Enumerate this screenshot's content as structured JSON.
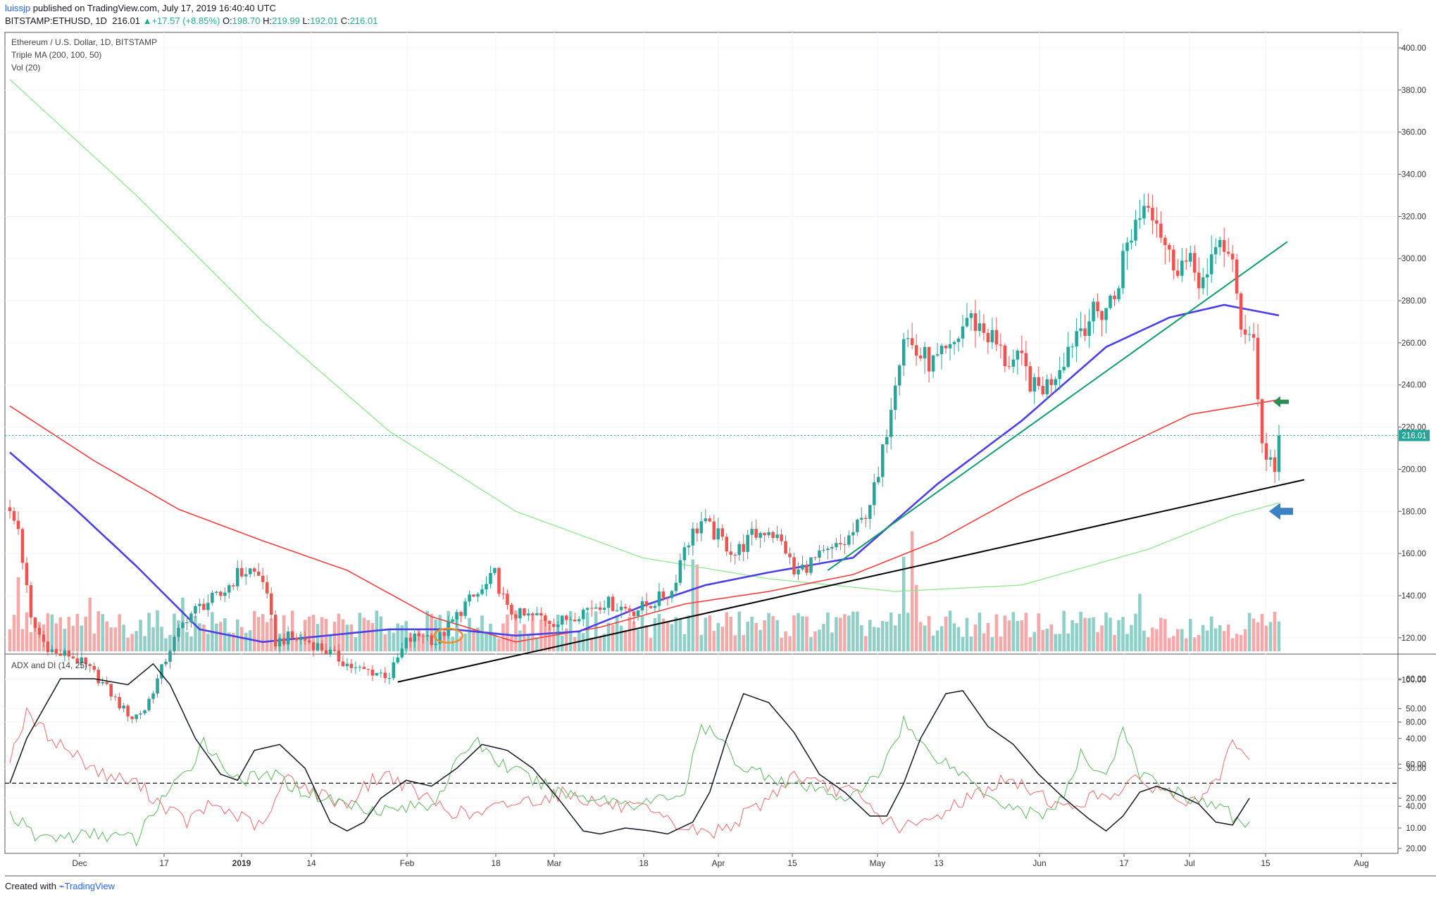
{
  "header": {
    "author": "luissjp",
    "published_text": "published on TradingView.com, July 17, 2019 16:40:40 UTC",
    "symbol": "BITSTAMP:ETHUSD, 1D",
    "last": "216.01",
    "change": "+17.57 (+8.85%)",
    "o_label": "O:",
    "o_value": "198.70",
    "h_label": "H:",
    "h_value": "219.99",
    "l_label": "L:",
    "l_value": "192.01",
    "c_label": "C:",
    "c_value": "216.01"
  },
  "legend": {
    "title": "Ethereum / U.S. Dollar, 1D, BITSTAMP",
    "ma": "Triple MA (200, 100, 50)",
    "vol": "Vol (20)",
    "adx": "ADX and DI (14, 25)"
  },
  "footer": {
    "created_with": "Created with",
    "brand": "TradingView"
  },
  "colors": {
    "bull": "#26a69a",
    "bear": "#ef5350",
    "vol_bull": "#8ecfc8",
    "vol_bear": "#f5a8a8",
    "ma50": "#4b3fe8",
    "ma100": "#f23f3f",
    "ma200": "#8fe88f",
    "trend_black": "#000000",
    "trend_green": "#0f9d6e",
    "adx": "#131722",
    "di_plus": "#5cb85c",
    "di_minus": "#ef6b6b",
    "arrow_blue": "#3b82c4",
    "arrow_green": "#2e8b57",
    "circle_orange": "#f28c28",
    "price_tag": "#26a69a"
  },
  "chart_data": {
    "type": "candlestick",
    "price_axis": {
      "min": 20,
      "max": 400,
      "ticks": [
        "20.00",
        "40.00",
        "60.00",
        "80.00",
        "100.00",
        "120.00",
        "140.00",
        "160.00",
        "180.00",
        "200.00",
        "220.00",
        "240.00",
        "260.00",
        "280.00",
        "300.00",
        "320.00",
        "340.00",
        "360.00",
        "380.00",
        "400.00"
      ],
      "last_price_label": "216.01",
      "last_price": 216.01
    },
    "adx_axis": {
      "min": 0,
      "max": 65,
      "ticks": [
        "10.00",
        "20.00",
        "30.00",
        "40.00",
        "50.00",
        "60.00"
      ],
      "threshold": 25
    },
    "time_axis": {
      "ticks": [
        "Dec",
        "17",
        "2019",
        "14",
        "Feb",
        "18",
        "Mar",
        "18",
        "Apr",
        "15",
        "May",
        "13",
        "Jun",
        "17",
        "Jul",
        "15",
        "Aug"
      ]
    },
    "price_anchors": [
      [
        0,
        178
      ],
      [
        2,
        172
      ],
      [
        5,
        128
      ],
      [
        8,
        118
      ],
      [
        11,
        112
      ],
      [
        14,
        112
      ],
      [
        17,
        108
      ],
      [
        20,
        103
      ],
      [
        23,
        96
      ],
      [
        26,
        88
      ],
      [
        29,
        82
      ],
      [
        32,
        86
      ],
      [
        35,
        100
      ],
      [
        38,
        115
      ],
      [
        42,
        130
      ],
      [
        46,
        136
      ],
      [
        50,
        140
      ],
      [
        54,
        150
      ],
      [
        57,
        152
      ],
      [
        60,
        148
      ],
      [
        63,
        118
      ],
      [
        66,
        120
      ],
      [
        70,
        119
      ],
      [
        74,
        115
      ],
      [
        78,
        110
      ],
      [
        82,
        105
      ],
      [
        86,
        104
      ],
      [
        90,
        102
      ],
      [
        94,
        118
      ],
      [
        98,
        122
      ],
      [
        101,
        118
      ],
      [
        104,
        125
      ],
      [
        108,
        136
      ],
      [
        112,
        142
      ],
      [
        115,
        150
      ],
      [
        118,
        133
      ],
      [
        122,
        130
      ],
      [
        126,
        130
      ],
      [
        130,
        127
      ],
      [
        134,
        131
      ],
      [
        137,
        134
      ],
      [
        141,
        137
      ],
      [
        144,
        135
      ],
      [
        148,
        133
      ],
      [
        152,
        136
      ],
      [
        155,
        140
      ],
      [
        157,
        142
      ],
      [
        160,
        164
      ],
      [
        164,
        175
      ],
      [
        168,
        168
      ],
      [
        172,
        160
      ],
      [
        176,
        168
      ],
      [
        180,
        172
      ],
      [
        184,
        162
      ],
      [
        186,
        150
      ],
      [
        190,
        156
      ],
      [
        194,
        160
      ],
      [
        198,
        165
      ],
      [
        202,
        175
      ],
      [
        206,
        195
      ],
      [
        210,
        245
      ],
      [
        212,
        265
      ],
      [
        215,
        255
      ],
      [
        219,
        250
      ],
      [
        223,
        255
      ],
      [
        227,
        272
      ],
      [
        230,
        268
      ],
      [
        233,
        262
      ],
      [
        236,
        252
      ],
      [
        240,
        250
      ],
      [
        243,
        238
      ],
      [
        246,
        240
      ],
      [
        249,
        250
      ],
      [
        253,
        266
      ],
      [
        256,
        272
      ],
      [
        259,
        275
      ],
      [
        262,
        282
      ],
      [
        264,
        300
      ],
      [
        267,
        318
      ],
      [
        270,
        330
      ],
      [
        272,
        320
      ],
      [
        275,
        300
      ],
      [
        278,
        298
      ],
      [
        281,
        294
      ],
      [
        284,
        288
      ],
      [
        287,
        312
      ],
      [
        290,
        294
      ],
      [
        292,
        270
      ],
      [
        295,
        262
      ],
      [
        297,
        210
      ],
      [
        299,
        205
      ],
      [
        301,
        216
      ]
    ],
    "ma200_anchors": [
      [
        0,
        385
      ],
      [
        30,
        330
      ],
      [
        60,
        270
      ],
      [
        90,
        218
      ],
      [
        120,
        180
      ],
      [
        150,
        158
      ],
      [
        180,
        148
      ],
      [
        210,
        142
      ],
      [
        240,
        145
      ],
      [
        270,
        162
      ],
      [
        290,
        178
      ],
      [
        301,
        184
      ]
    ],
    "ma100_anchors": [
      [
        0,
        230
      ],
      [
        20,
        204
      ],
      [
        40,
        181
      ],
      [
        60,
        166
      ],
      [
        80,
        152
      ],
      [
        100,
        130
      ],
      [
        120,
        118
      ],
      [
        140,
        125
      ],
      [
        160,
        136
      ],
      [
        180,
        142
      ],
      [
        200,
        150
      ],
      [
        220,
        166
      ],
      [
        240,
        188
      ],
      [
        260,
        207
      ],
      [
        280,
        226
      ],
      [
        301,
        233
      ]
    ],
    "ma50_anchors": [
      [
        0,
        208
      ],
      [
        15,
        182
      ],
      [
        30,
        154
      ],
      [
        45,
        124
      ],
      [
        60,
        118
      ],
      [
        75,
        121
      ],
      [
        90,
        124
      ],
      [
        105,
        124
      ],
      [
        120,
        121
      ],
      [
        135,
        123
      ],
      [
        150,
        135
      ],
      [
        165,
        145
      ],
      [
        180,
        151
      ],
      [
        200,
        158
      ],
      [
        220,
        193
      ],
      [
        240,
        223
      ],
      [
        260,
        258
      ],
      [
        275,
        272
      ],
      [
        288,
        278
      ],
      [
        301,
        273
      ]
    ],
    "trendlines": [
      {
        "name": "support",
        "from": [
          92,
          99
        ],
        "to": [
          307,
          195
        ]
      },
      {
        "name": "rising",
        "from": [
          194,
          152
        ],
        "to": [
          303,
          308
        ]
      }
    ],
    "volume": {
      "max": 80,
      "spikes": [
        [
          2,
          58
        ],
        [
          19,
          42
        ],
        [
          41,
          42
        ],
        [
          162,
          72
        ],
        [
          163,
          68
        ],
        [
          212,
          74
        ],
        [
          214,
          94
        ],
        [
          215,
          52
        ],
        [
          268,
          45
        ],
        [
          294,
          30
        ]
      ]
    },
    "adx_anchors": [
      [
        0,
        25
      ],
      [
        4,
        40
      ],
      [
        12,
        60
      ],
      [
        20,
        60
      ],
      [
        28,
        58
      ],
      [
        34,
        65
      ],
      [
        38,
        58
      ],
      [
        44,
        40
      ],
      [
        50,
        28
      ],
      [
        54,
        26
      ],
      [
        58,
        36
      ],
      [
        64,
        38
      ],
      [
        70,
        30
      ],
      [
        76,
        12
      ],
      [
        80,
        9
      ],
      [
        84,
        12
      ],
      [
        88,
        20
      ],
      [
        94,
        26
      ],
      [
        100,
        24
      ],
      [
        106,
        30
      ],
      [
        112,
        38
      ],
      [
        118,
        36
      ],
      [
        124,
        30
      ],
      [
        130,
        20
      ],
      [
        136,
        9
      ],
      [
        140,
        8
      ],
      [
        146,
        10
      ],
      [
        152,
        9
      ],
      [
        156,
        8
      ],
      [
        162,
        12
      ],
      [
        166,
        22
      ],
      [
        170,
        40
      ],
      [
        174,
        55
      ],
      [
        180,
        52
      ],
      [
        186,
        42
      ],
      [
        192,
        28
      ],
      [
        198,
        22
      ],
      [
        204,
        14
      ],
      [
        208,
        14
      ],
      [
        212,
        25
      ],
      [
        216,
        40
      ],
      [
        222,
        55
      ],
      [
        226,
        56
      ],
      [
        232,
        44
      ],
      [
        238,
        38
      ],
      [
        244,
        28
      ],
      [
        250,
        20
      ],
      [
        256,
        13
      ],
      [
        260,
        9
      ],
      [
        264,
        14
      ],
      [
        268,
        22
      ],
      [
        272,
        24
      ],
      [
        276,
        22
      ],
      [
        282,
        18
      ],
      [
        286,
        12
      ],
      [
        290,
        11
      ],
      [
        294,
        20
      ]
    ],
    "di_plus_anchors": [
      [
        0,
        15
      ],
      [
        6,
        7
      ],
      [
        14,
        7
      ],
      [
        22,
        8
      ],
      [
        30,
        6
      ],
      [
        36,
        20
      ],
      [
        42,
        28
      ],
      [
        46,
        40
      ],
      [
        50,
        31
      ],
      [
        56,
        26
      ],
      [
        62,
        28
      ],
      [
        70,
        22
      ],
      [
        80,
        18
      ],
      [
        90,
        16
      ],
      [
        100,
        18
      ],
      [
        110,
        40
      ],
      [
        116,
        32
      ],
      [
        124,
        26
      ],
      [
        130,
        22
      ],
      [
        140,
        20
      ],
      [
        150,
        18
      ],
      [
        160,
        22
      ],
      [
        164,
        44
      ],
      [
        168,
        40
      ],
      [
        174,
        30
      ],
      [
        180,
        28
      ],
      [
        186,
        24
      ],
      [
        194,
        22
      ],
      [
        200,
        20
      ],
      [
        206,
        28
      ],
      [
        212,
        46
      ],
      [
        216,
        38
      ],
      [
        222,
        32
      ],
      [
        230,
        24
      ],
      [
        236,
        18
      ],
      [
        244,
        14
      ],
      [
        250,
        20
      ],
      [
        254,
        34
      ],
      [
        260,
        28
      ],
      [
        264,
        42
      ],
      [
        268,
        28
      ],
      [
        274,
        24
      ],
      [
        280,
        20
      ],
      [
        288,
        16
      ],
      [
        294,
        10
      ]
    ],
    "di_minus_anchors": [
      [
        0,
        34
      ],
      [
        4,
        48
      ],
      [
        10,
        40
      ],
      [
        16,
        34
      ],
      [
        22,
        28
      ],
      [
        30,
        25
      ],
      [
        36,
        18
      ],
      [
        42,
        12
      ],
      [
        48,
        18
      ],
      [
        54,
        14
      ],
      [
        60,
        10
      ],
      [
        66,
        28
      ],
      [
        72,
        22
      ],
      [
        80,
        18
      ],
      [
        86,
        26
      ],
      [
        90,
        28
      ],
      [
        96,
        22
      ],
      [
        104,
        16
      ],
      [
        110,
        14
      ],
      [
        118,
        18
      ],
      [
        126,
        20
      ],
      [
        132,
        22
      ],
      [
        140,
        18
      ],
      [
        150,
        16
      ],
      [
        156,
        12
      ],
      [
        160,
        10
      ],
      [
        166,
        8
      ],
      [
        172,
        12
      ],
      [
        180,
        20
      ],
      [
        186,
        28
      ],
      [
        192,
        24
      ],
      [
        200,
        22
      ],
      [
        206,
        14
      ],
      [
        212,
        10
      ],
      [
        218,
        12
      ],
      [
        224,
        18
      ],
      [
        230,
        22
      ],
      [
        236,
        26
      ],
      [
        244,
        22
      ],
      [
        250,
        16
      ],
      [
        256,
        20
      ],
      [
        262,
        22
      ],
      [
        268,
        26
      ],
      [
        274,
        22
      ],
      [
        280,
        18
      ],
      [
        286,
        24
      ],
      [
        290,
        38
      ],
      [
        294,
        32
      ]
    ]
  }
}
